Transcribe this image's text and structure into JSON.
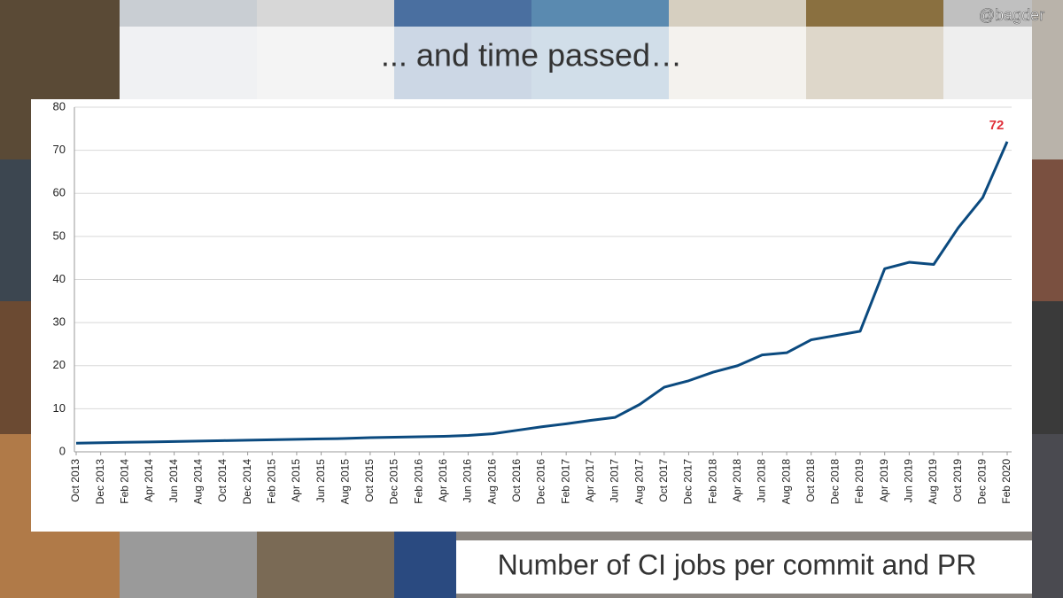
{
  "header": {
    "title": "... and time passed…",
    "credit": "@bagder"
  },
  "caption": "Number of CI jobs per commit and PR",
  "chart_data": {
    "type": "line",
    "categories": [
      "Oct 2013",
      "Dec 2013",
      "Feb 2014",
      "Apr 2014",
      "Jun 2014",
      "Aug 2014",
      "Oct 2014",
      "Dec 2014",
      "Feb 2015",
      "Apr 2015",
      "Jun 2015",
      "Aug 2015",
      "Oct 2015",
      "Dec 2015",
      "Feb 2016",
      "Apr 2016",
      "Jun 2016",
      "Aug 2016",
      "Oct 2016",
      "Dec 2016",
      "Feb 2017",
      "Apr 2017",
      "Jun 2017",
      "Aug 2017",
      "Oct 2017",
      "Dec 2017",
      "Feb 2018",
      "Apr 2018",
      "Jun 2018",
      "Aug 2018",
      "Oct 2018",
      "Dec 2018",
      "Feb 2019",
      "Apr 2019",
      "Jun 2019",
      "Aug 2019",
      "Oct 2019",
      "Dec 2019",
      "Feb 2020"
    ],
    "values": [
      2,
      2.1,
      2.2,
      2.3,
      2.4,
      2.5,
      2.6,
      2.7,
      2.8,
      2.9,
      3,
      3.1,
      3.3,
      3.4,
      3.5,
      3.6,
      3.8,
      4.2,
      5,
      5.8,
      6.5,
      7.3,
      8,
      11,
      15,
      16.5,
      18.5,
      20,
      22.5,
      23,
      26,
      27,
      28,
      42.5,
      44,
      43.5,
      52,
      59,
      72
    ],
    "color": "#0b4a7f",
    "ylim": [
      0,
      80
    ],
    "yticks": [
      0,
      10,
      20,
      30,
      40,
      50,
      60,
      70,
      80
    ],
    "grid": true
  }
}
